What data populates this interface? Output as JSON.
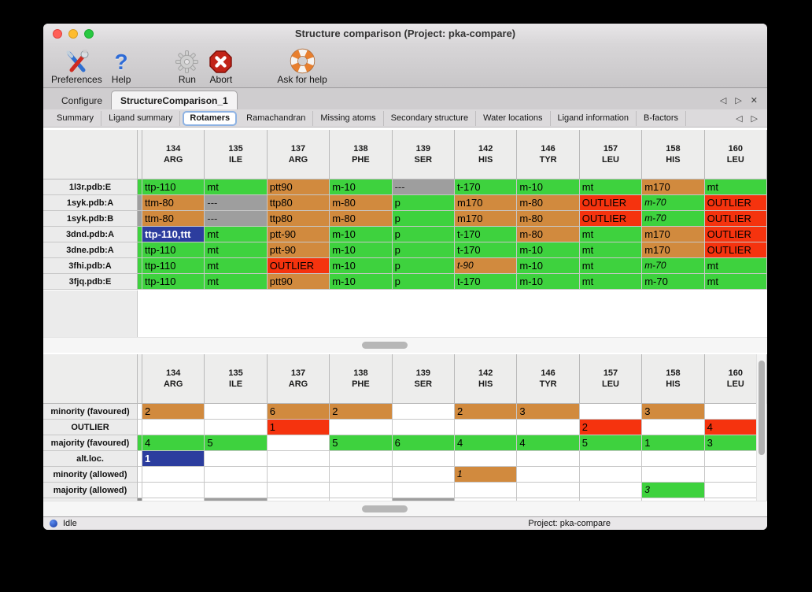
{
  "window": {
    "title": "Structure comparison (Project: pka-compare)"
  },
  "toolbar": {
    "items": [
      {
        "label": "Preferences",
        "icon": "tools-icon"
      },
      {
        "label": "Help",
        "icon": "question-icon"
      },
      {
        "label": "Run",
        "icon": "gear-icon"
      },
      {
        "label": "Abort",
        "icon": "stop-icon"
      },
      {
        "label": "Ask for help",
        "icon": "lifebuoy-icon"
      }
    ]
  },
  "tabs": {
    "items": [
      {
        "label": "Configure",
        "selected": false
      },
      {
        "label": "StructureComparison_1",
        "selected": true
      }
    ]
  },
  "subtabs": {
    "selected": "Rotamers",
    "items": [
      "Summary",
      "Ligand summary",
      "Rotamers",
      "Ramachandran",
      "Missing atoms",
      "Secondary structure",
      "Water locations",
      "Ligand information",
      "B-factors"
    ]
  },
  "icons": {
    "scroll_left": "◁",
    "scroll_right": "▷",
    "close": "✕"
  },
  "colors": {
    "green": "#3ed23e",
    "tan": "#d18a3e",
    "red": "#f5330e",
    "gray": "#9e9e9e",
    "blue": "#2c3d9e"
  },
  "columns": [
    [
      "134",
      "ARG"
    ],
    [
      "135",
      "ILE"
    ],
    [
      "137",
      "ARG"
    ],
    [
      "138",
      "PHE"
    ],
    [
      "139",
      "SER"
    ],
    [
      "142",
      "HIS"
    ],
    [
      "146",
      "TYR"
    ],
    [
      "157",
      "LEU"
    ],
    [
      "158",
      "HIS"
    ],
    [
      "160",
      "LEU"
    ]
  ],
  "top_table": {
    "rows": [
      {
        "name": "1l3r.pdb:E",
        "partial": "green",
        "cells": [
          {
            "t": "ttp-110",
            "c": "green"
          },
          {
            "t": "mt",
            "c": "green"
          },
          {
            "t": "ptt90",
            "c": "tan"
          },
          {
            "t": "m-10",
            "c": "green"
          },
          {
            "t": "---",
            "c": "gray"
          },
          {
            "t": "t-170",
            "c": "green"
          },
          {
            "t": "m-10",
            "c": "green"
          },
          {
            "t": "mt",
            "c": "green"
          },
          {
            "t": "m170",
            "c": "tan"
          },
          {
            "t": "mt",
            "c": "green"
          }
        ]
      },
      {
        "name": "1syk.pdb:A",
        "partial": "gray",
        "cells": [
          {
            "t": "ttm-80",
            "c": "tan"
          },
          {
            "t": "---",
            "c": "gray"
          },
          {
            "t": "ttp80",
            "c": "tan"
          },
          {
            "t": "m-80",
            "c": "tan"
          },
          {
            "t": "p",
            "c": "green"
          },
          {
            "t": "m170",
            "c": "tan"
          },
          {
            "t": "m-80",
            "c": "tan"
          },
          {
            "t": "OUTLIER",
            "c": "red"
          },
          {
            "t": "m-70",
            "c": "green",
            "i": true
          },
          {
            "t": "OUTLIER",
            "c": "red"
          }
        ]
      },
      {
        "name": "1syk.pdb:B",
        "partial": "gray",
        "cells": [
          {
            "t": "ttm-80",
            "c": "tan"
          },
          {
            "t": "---",
            "c": "gray"
          },
          {
            "t": "ttp80",
            "c": "tan"
          },
          {
            "t": "m-80",
            "c": "tan"
          },
          {
            "t": "p",
            "c": "green"
          },
          {
            "t": "m170",
            "c": "tan"
          },
          {
            "t": "m-80",
            "c": "tan"
          },
          {
            "t": "OUTLIER",
            "c": "red"
          },
          {
            "t": "m-70",
            "c": "green",
            "i": true
          },
          {
            "t": "OUTLIER",
            "c": "red"
          }
        ]
      },
      {
        "name": "3dnd.pdb:A",
        "partial": "green",
        "cells": [
          {
            "t": "ttp-110,ttt",
            "c": "blue"
          },
          {
            "t": "mt",
            "c": "green"
          },
          {
            "t": "ptt-90",
            "c": "tan"
          },
          {
            "t": "m-10",
            "c": "green"
          },
          {
            "t": "p",
            "c": "green"
          },
          {
            "t": "t-170",
            "c": "green"
          },
          {
            "t": "m-80",
            "c": "tan"
          },
          {
            "t": "mt",
            "c": "green"
          },
          {
            "t": "m170",
            "c": "tan"
          },
          {
            "t": "OUTLIER",
            "c": "red"
          }
        ]
      },
      {
        "name": "3dne.pdb:A",
        "partial": "green",
        "cells": [
          {
            "t": "ttp-110",
            "c": "green"
          },
          {
            "t": "mt",
            "c": "green"
          },
          {
            "t": "ptt-90",
            "c": "tan"
          },
          {
            "t": "m-10",
            "c": "green"
          },
          {
            "t": "p",
            "c": "green"
          },
          {
            "t": "t-170",
            "c": "green"
          },
          {
            "t": "m-10",
            "c": "green"
          },
          {
            "t": "mt",
            "c": "green"
          },
          {
            "t": "m170",
            "c": "tan"
          },
          {
            "t": "OUTLIER",
            "c": "red"
          }
        ]
      },
      {
        "name": "3fhi.pdb:A",
        "partial": "green",
        "cells": [
          {
            "t": "ttp-110",
            "c": "green"
          },
          {
            "t": "mt",
            "c": "green"
          },
          {
            "t": "OUTLIER",
            "c": "red"
          },
          {
            "t": "m-10",
            "c": "green"
          },
          {
            "t": "p",
            "c": "green"
          },
          {
            "t": "t-90",
            "c": "tan",
            "i": true
          },
          {
            "t": "m-10",
            "c": "green"
          },
          {
            "t": "mt",
            "c": "green"
          },
          {
            "t": "m-70",
            "c": "green",
            "i": true
          },
          {
            "t": "mt",
            "c": "green"
          }
        ]
      },
      {
        "name": "3fjq.pdb:E",
        "partial": "green",
        "cells": [
          {
            "t": "ttp-110",
            "c": "green"
          },
          {
            "t": "mt",
            "c": "green"
          },
          {
            "t": "ptt90",
            "c": "tan"
          },
          {
            "t": "m-10",
            "c": "green"
          },
          {
            "t": "p",
            "c": "green"
          },
          {
            "t": "t-170",
            "c": "green"
          },
          {
            "t": "m-10",
            "c": "green"
          },
          {
            "t": "mt",
            "c": "green"
          },
          {
            "t": "m-70",
            "c": "green"
          },
          {
            "t": "mt",
            "c": "green"
          }
        ]
      }
    ]
  },
  "bottom_table": {
    "rows": [
      {
        "name": "minority (favoured)",
        "partial": "white",
        "cells": [
          {
            "t": "2",
            "c": "tan"
          },
          null,
          {
            "t": "6",
            "c": "tan"
          },
          {
            "t": "2",
            "c": "tan"
          },
          null,
          {
            "t": "2",
            "c": "tan"
          },
          {
            "t": "3",
            "c": "tan"
          },
          null,
          {
            "t": "3",
            "c": "tan"
          },
          null
        ]
      },
      {
        "name": "OUTLIER",
        "partial": "white",
        "cells": [
          null,
          null,
          {
            "t": "1",
            "c": "red"
          },
          null,
          null,
          null,
          null,
          {
            "t": "2",
            "c": "red"
          },
          null,
          {
            "t": "4",
            "c": "red"
          }
        ]
      },
      {
        "name": "majority (favoured)",
        "partial": "green",
        "cells": [
          {
            "t": "4",
            "c": "green"
          },
          {
            "t": "5",
            "c": "green"
          },
          null,
          {
            "t": "5",
            "c": "green"
          },
          {
            "t": "6",
            "c": "green"
          },
          {
            "t": "4",
            "c": "green"
          },
          {
            "t": "4",
            "c": "green"
          },
          {
            "t": "5",
            "c": "green"
          },
          {
            "t": "1",
            "c": "green"
          },
          {
            "t": "3",
            "c": "green"
          }
        ]
      },
      {
        "name": "alt.loc.",
        "partial": "white",
        "cells": [
          {
            "t": "1",
            "c": "blue"
          },
          null,
          null,
          null,
          null,
          null,
          null,
          null,
          null,
          null
        ]
      },
      {
        "name": "minority (allowed)",
        "partial": "white",
        "cells": [
          null,
          null,
          null,
          null,
          null,
          {
            "t": "1",
            "c": "tan",
            "i": true
          },
          null,
          null,
          null,
          null
        ]
      },
      {
        "name": "majority (allowed)",
        "partial": "white",
        "cells": [
          null,
          null,
          null,
          null,
          null,
          null,
          null,
          null,
          {
            "t": "3",
            "c": "green",
            "i": true
          },
          null
        ]
      }
    ],
    "partial_row": {
      "partial": "darkgray",
      "cells": [
        "white",
        "gray",
        "white",
        "white",
        "gray",
        "white",
        "white",
        "white",
        "white",
        "white"
      ]
    }
  },
  "statusbar": {
    "status": "Idle",
    "project": "Project: pka-compare"
  }
}
